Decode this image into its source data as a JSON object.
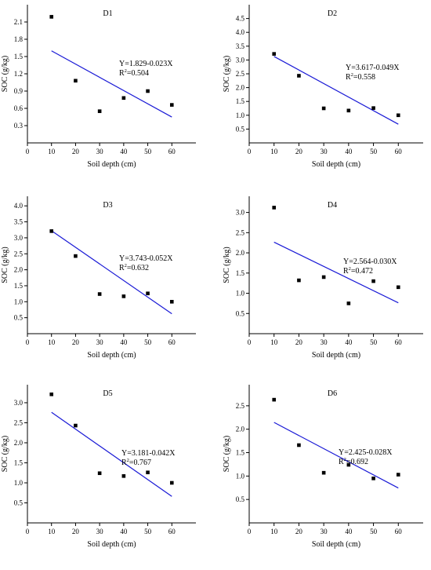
{
  "chart_data": [
    {
      "type": "scatter",
      "title": "D1",
      "xlabel": "Soil depth (cm)",
      "ylabel": "SOC (g/kg)",
      "xlim": [
        0,
        70
      ],
      "xticks": [
        0,
        10,
        20,
        30,
        40,
        50,
        60
      ],
      "ylim": [
        0,
        2.4
      ],
      "yticks": [
        "0.3",
        "0.6",
        "0.9",
        "1.2",
        "1.5",
        "1.8",
        "2.1"
      ],
      "x": [
        10,
        20,
        30,
        40,
        50,
        60
      ],
      "y": [
        2.19,
        1.08,
        0.55,
        0.78,
        0.9,
        0.66
      ],
      "fit": {
        "intercept": 1.829,
        "slope": -0.023,
        "x_range": [
          10,
          60
        ]
      },
      "equation": "Y=1.829-0.023X",
      "r2_label": "R",
      "r2_sup": "2",
      "r2_value": "=0.504",
      "grid": false
    },
    {
      "type": "scatter",
      "title": "D2",
      "xlabel": "Soil depth (cm)",
      "ylabel": "SOC (g/kg)",
      "xlim": [
        0,
        70
      ],
      "xticks": [
        0,
        10,
        20,
        30,
        40,
        50,
        60
      ],
      "ylim": [
        0,
        5.0
      ],
      "yticks": [
        "0.5",
        "1.0",
        "1.5",
        "2.0",
        "2.5",
        "3.0",
        "3.5",
        "4.0",
        "4.5"
      ],
      "x": [
        10,
        20,
        30,
        40,
        50,
        60
      ],
      "y": [
        3.22,
        2.43,
        1.25,
        1.17,
        1.26,
        1.0
      ],
      "fit": {
        "intercept": 3.617,
        "slope": -0.049,
        "x_range": [
          10,
          60
        ]
      },
      "equation": "Y=3.617-0.049X",
      "r2_label": "R",
      "r2_sup": "2",
      "r2_value": "=0.558",
      "grid": false
    },
    {
      "type": "scatter",
      "title": "D3",
      "xlabel": "Soil depth (cm)",
      "ylabel": "SOC (g/kg)",
      "xlim": [
        0,
        70
      ],
      "xticks": [
        0,
        10,
        20,
        30,
        40,
        50,
        60
      ],
      "ylim": [
        0,
        4.3
      ],
      "yticks": [
        "0.5",
        "1.0",
        "1.5",
        "2.0",
        "2.5",
        "3.0",
        "3.5",
        "4.0"
      ],
      "x": [
        10,
        20,
        30,
        40,
        50,
        60
      ],
      "y": [
        3.21,
        2.43,
        1.24,
        1.17,
        1.26,
        1.0
      ],
      "fit": {
        "intercept": 3.743,
        "slope": -0.052,
        "x_range": [
          10,
          60
        ]
      },
      "equation": "Y=3.743-0.052X",
      "r2_label": "R",
      "r2_sup": "2",
      "r2_value": "=0.632",
      "grid": false
    },
    {
      "type": "scatter",
      "title": "D4",
      "xlabel": "Soil depth (cm)",
      "ylabel": "SOC (g/kg)",
      "xlim": [
        0,
        70
      ],
      "xticks": [
        0,
        10,
        20,
        30,
        40,
        50,
        60
      ],
      "ylim": [
        0,
        3.4
      ],
      "yticks": [
        "0.5",
        "1.0",
        "1.5",
        "2.0",
        "2.5",
        "3.0"
      ],
      "x": [
        10,
        20,
        30,
        40,
        50,
        60
      ],
      "y": [
        3.12,
        1.32,
        1.4,
        0.75,
        1.3,
        1.15
      ],
      "fit": {
        "intercept": 2.564,
        "slope": -0.03,
        "x_range": [
          10,
          60
        ]
      },
      "equation": "Y=2.564-0.030X",
      "r2_label": "R",
      "r2_sup": "2",
      "r2_value": "=0.472",
      "grid": false
    },
    {
      "type": "scatter",
      "title": "D5",
      "xlabel": "Soil depth (cm)",
      "ylabel": "SOC (g/kg)",
      "xlim": [
        0,
        70
      ],
      "xticks": [
        0,
        10,
        20,
        30,
        40,
        50,
        60
      ],
      "ylim": [
        0,
        3.45
      ],
      "yticks": [
        "0.5",
        "1.0",
        "1.5",
        "2.0",
        "2.5",
        "3.0"
      ],
      "x": [
        10,
        20,
        30,
        40,
        50,
        60
      ],
      "y": [
        3.21,
        2.43,
        1.24,
        1.17,
        1.26,
        1.0
      ],
      "fit": {
        "intercept": 3.181,
        "slope": -0.042,
        "x_range": [
          10,
          60
        ]
      },
      "equation": "Y=3.181-0.042X",
      "r2_label": "R",
      "r2_sup": "2",
      "r2_value": "=0.767",
      "grid": false
    },
    {
      "type": "scatter",
      "title": "D6",
      "xlabel": "Soil depth (cm)",
      "ylabel": "SOC (g/kg)",
      "xlim": [
        0,
        70
      ],
      "xticks": [
        0,
        10,
        20,
        30,
        40,
        50,
        60
      ],
      "ylim": [
        0,
        2.95
      ],
      "yticks": [
        "0.5",
        "1.0",
        "1.5",
        "2.0",
        "2.5"
      ],
      "x": [
        10,
        20,
        30,
        40,
        50,
        60
      ],
      "y": [
        2.63,
        1.66,
        1.07,
        1.24,
        0.95,
        1.03
      ],
      "fit": {
        "intercept": 2.425,
        "slope": -0.028,
        "x_range": [
          10,
          60
        ]
      },
      "equation": "Y=2.425-0.028X",
      "r2_label": "R",
      "r2_sup": "2",
      "r2_value": "=0.692",
      "grid": false
    }
  ],
  "colors": {
    "fit_line": "#1a1ad6",
    "marker": "#000000",
    "axis": "#000000"
  }
}
